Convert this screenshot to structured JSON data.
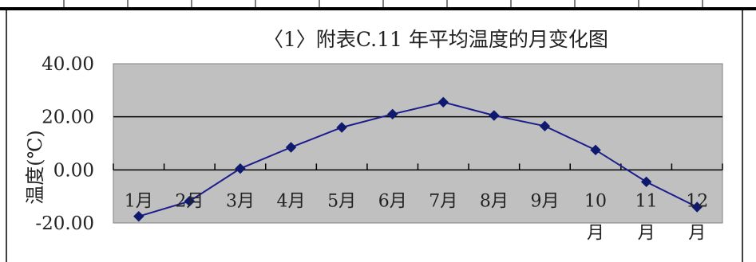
{
  "chart_data": {
    "type": "line",
    "title": "〈1〉附表C.11 年平均温度的月变化图",
    "ylabel": "温度(℃)",
    "xlabel": "",
    "categories": [
      "1月",
      "2月",
      "3月",
      "4月",
      "5月",
      "6月",
      "7月",
      "8月",
      "9月",
      "10月",
      "11月",
      "12月"
    ],
    "category_lines": [
      [
        "1月"
      ],
      [
        "2月"
      ],
      [
        "3月"
      ],
      [
        "4月"
      ],
      [
        "5月"
      ],
      [
        "6月"
      ],
      [
        "7月"
      ],
      [
        "8月"
      ],
      [
        "9月"
      ],
      [
        "10",
        "月"
      ],
      [
        "11",
        "月"
      ],
      [
        "12",
        "月"
      ]
    ],
    "series": [
      {
        "values": [
          -17.5,
          -11.8,
          0.5,
          8.5,
          16.0,
          21.0,
          25.5,
          20.5,
          16.5,
          7.5,
          -4.5,
          -14.0
        ]
      }
    ],
    "ylim": [
      -20,
      40
    ],
    "yticks": [
      "40.00",
      "20.00",
      "0.00",
      "-20.00"
    ],
    "ytick_values": [
      40,
      20,
      0,
      -20
    ],
    "grid": true,
    "legend": "none",
    "colors": {
      "plot_background": "#c0c0c0",
      "line": "#1c1c8c",
      "marker": "#0f1a6e",
      "gridline": "#000000"
    }
  }
}
